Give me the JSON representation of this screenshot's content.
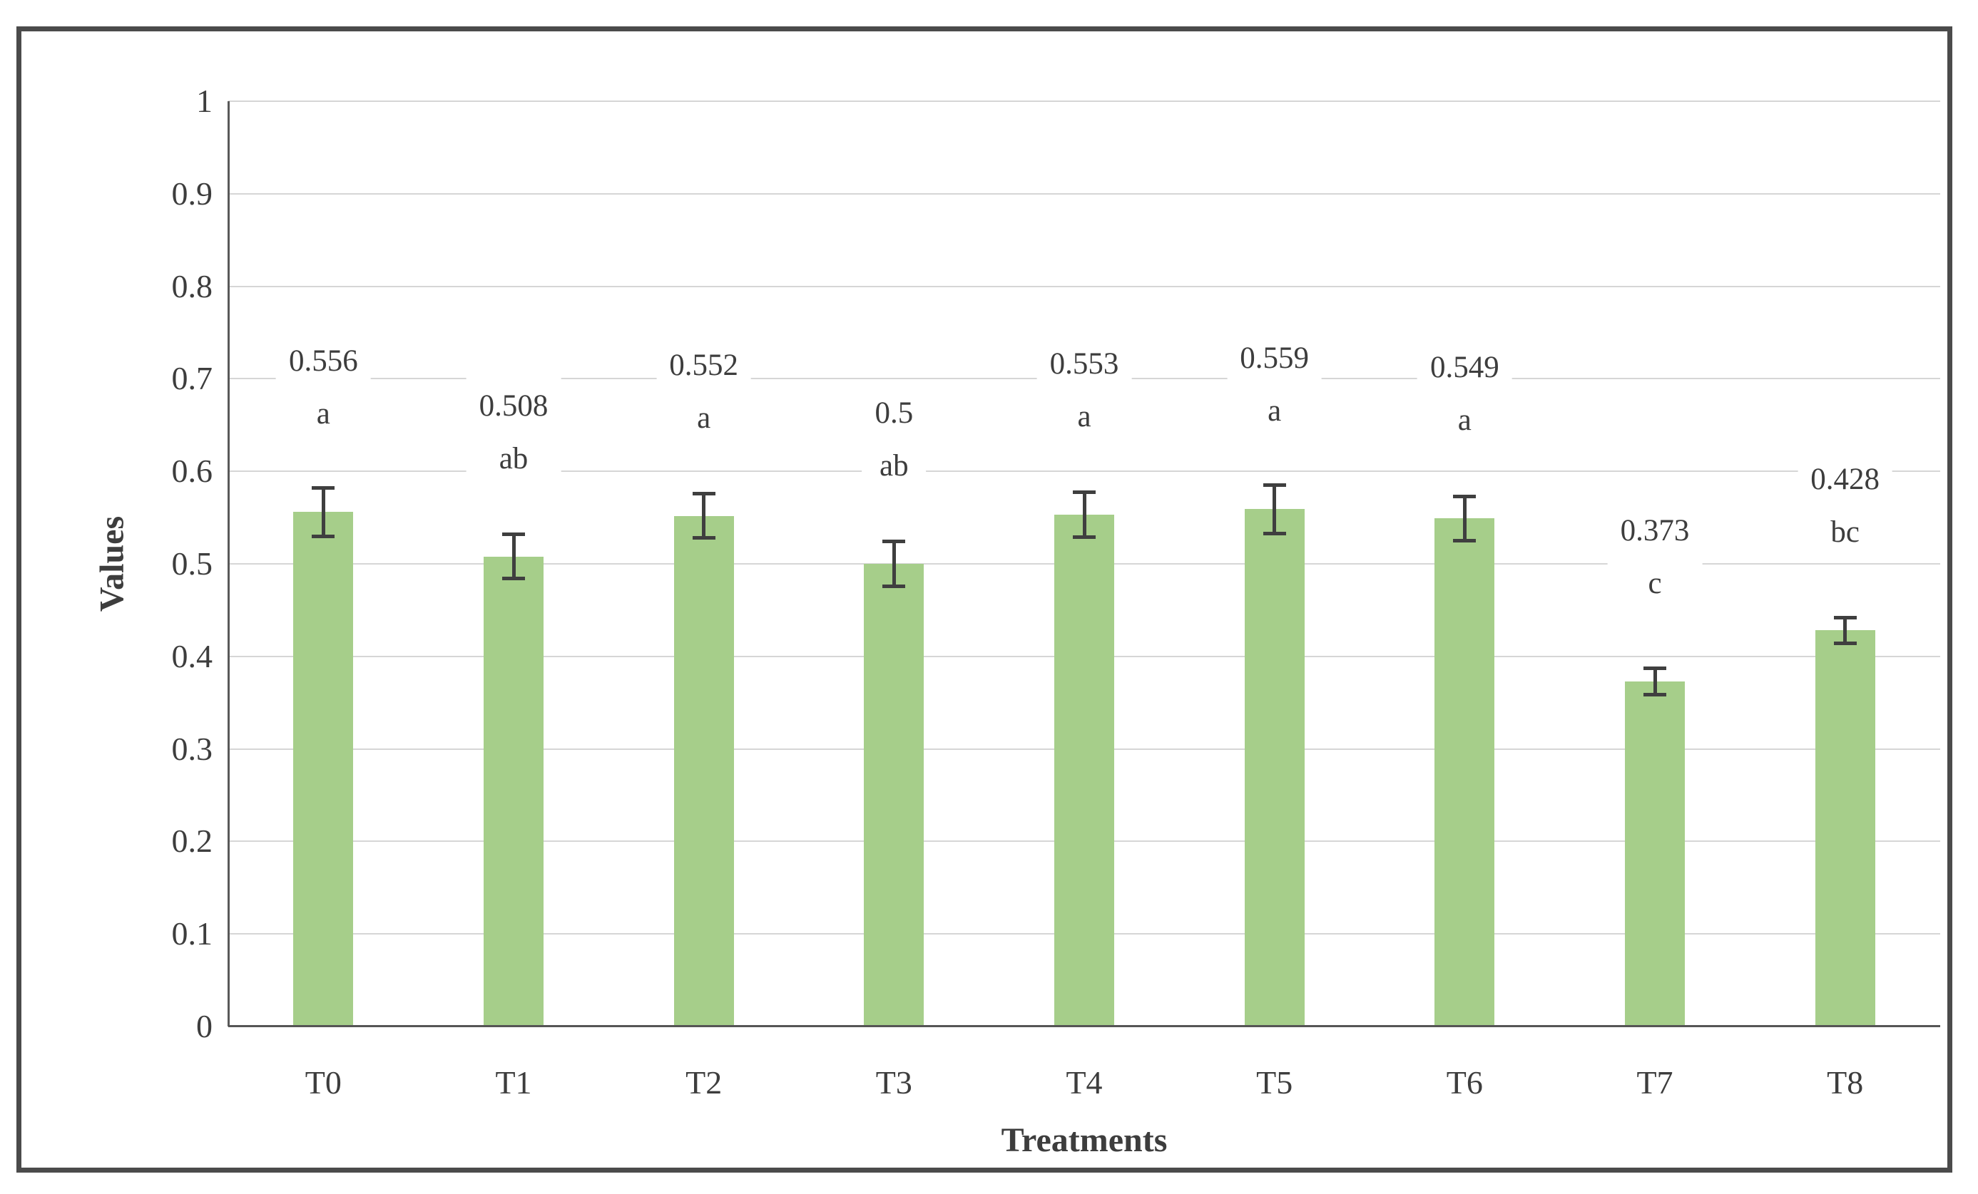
{
  "chart_data": {
    "type": "bar",
    "title": "",
    "xlabel": "Treatments",
    "ylabel": "Values",
    "categories": [
      "T0",
      "T1",
      "T2",
      "T3",
      "T4",
      "T5",
      "T6",
      "T7",
      "T8"
    ],
    "series": [
      {
        "name": "Values",
        "values": [
          0.556,
          0.508,
          0.552,
          0.5,
          0.553,
          0.559,
          0.549,
          0.373,
          0.428
        ],
        "data_labels": [
          "0.556",
          "0.508",
          "0.552",
          "0.5",
          "0.553",
          "0.559",
          "0.549",
          "0.373",
          "0.428"
        ],
        "significance_letters": [
          "a",
          "ab",
          "a",
          "ab",
          "a",
          "a",
          "a",
          "c",
          "bc"
        ],
        "error_bars": [
          0.028,
          0.026,
          0.026,
          0.026,
          0.026,
          0.028,
          0.026,
          0.016,
          0.016
        ]
      }
    ],
    "ylim": [
      0,
      1
    ],
    "ytick_values": [
      0,
      0.1,
      0.2,
      0.3,
      0.4,
      0.5,
      0.6,
      0.7,
      0.8,
      0.9,
      1
    ],
    "ytick_labels": [
      "0",
      "0.1",
      "0.2",
      "0.3",
      "0.4",
      "0.5",
      "0.6",
      "0.7",
      "0.8",
      "0.9",
      "1"
    ],
    "grid": "horizontal",
    "legend": "none",
    "error_bar_style": "both-ends-with-caps",
    "colors": {
      "bar": "#a6ce8a",
      "error_bar": "#3f3f3f",
      "gridline": "#d6d6d6",
      "axis_line": "#555555",
      "text": "#3d3d3d",
      "frame_border": "#4b4b4b",
      "background": "#ffffff"
    }
  }
}
